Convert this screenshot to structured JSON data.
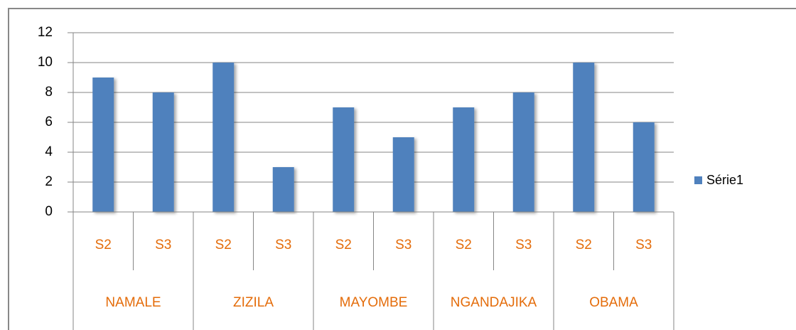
{
  "chart_data": {
    "type": "bar",
    "categories": [
      "S2",
      "S3",
      "S2",
      "S3",
      "S2",
      "S3",
      "S2",
      "S3",
      "S2",
      "S3"
    ],
    "groups": [
      "NAMALE",
      "ZIZILA",
      "MAYOMBE",
      "NGANDAJIKA",
      "OBAMA"
    ],
    "series": [
      {
        "name": "Série1",
        "color": "#4f81bd",
        "values": [
          9,
          8,
          10,
          3,
          7,
          5,
          7,
          8,
          10,
          6
        ]
      }
    ],
    "ylim": [
      0,
      12
    ],
    "yticks": [
      0,
      2,
      4,
      6,
      8,
      10,
      12
    ],
    "grid": true,
    "legend": "right"
  }
}
